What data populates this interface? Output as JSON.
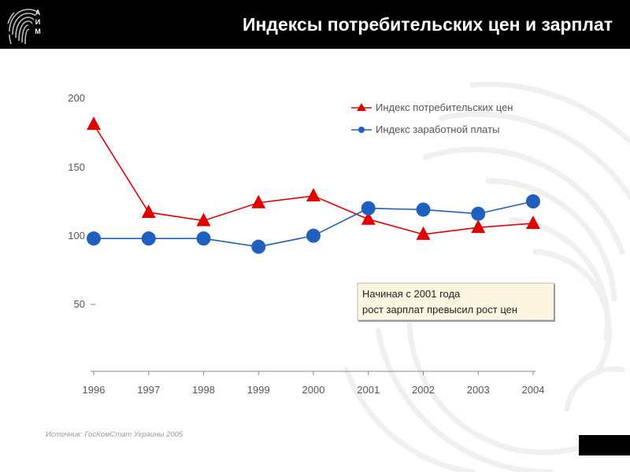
{
  "header": {
    "title": "Индексы потребительских цен и зарплат",
    "logo_letters": [
      "А",
      "И",
      "М"
    ]
  },
  "chart_data": {
    "type": "line",
    "categories": [
      "1996",
      "1997",
      "1998",
      "1999",
      "2000",
      "2001",
      "2002",
      "2003",
      "2004"
    ],
    "ylim": [
      50,
      200
    ],
    "yticks": [
      "200",
      "150",
      "100",
      "50"
    ],
    "grid": false,
    "legend_position": "top-right",
    "series": [
      {
        "name": "Индекс потребительских цен",
        "color": "#e00000",
        "marker": "triangle",
        "values": [
          181,
          117,
          111,
          124,
          129,
          112,
          101,
          106,
          109
        ]
      },
      {
        "name": "Индекс заработной платы",
        "color": "#1f5fbf",
        "marker": "circle",
        "values": [
          98,
          98,
          98,
          92,
          100,
          120,
          119,
          116,
          125
        ]
      }
    ],
    "annotation": {
      "line1": "Начиная с 2001 года",
      "line2": "рост зарплат превысил рост цен"
    }
  },
  "footer": {
    "source": "Источник: ГосКомСтат Украины 2005"
  },
  "colors": {
    "header_bg": "#000000",
    "header_text": "#ffffff",
    "annotation_bg": "#fdf5e0",
    "axis": "#888888"
  }
}
